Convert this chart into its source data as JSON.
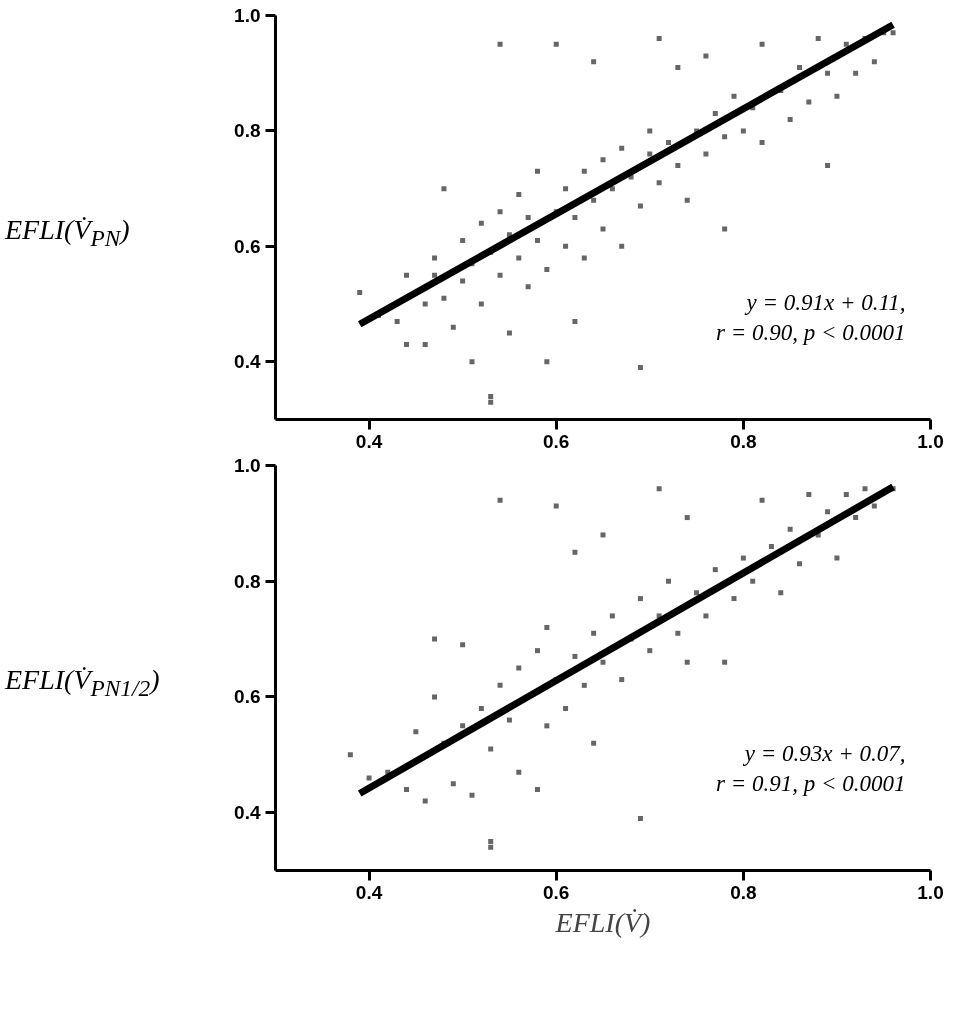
{
  "chart_data": [
    {
      "type": "scatter",
      "ylabel": "EFLI(V̇$_{PN}$)",
      "xlim": [
        0.3,
        1.0
      ],
      "ylim": [
        0.3,
        1.0
      ],
      "xticks": [
        0.4,
        0.6,
        0.8,
        {
          "value": 1.0,
          "label": "1.0"
        }
      ],
      "yticks": [
        0.4,
        0.6,
        0.8,
        {
          "value": 1.0,
          "label": "1.0"
        }
      ],
      "annotations": [
        "y = 0.91x + 0.11,",
        "r = 0.90, p < 0.0001"
      ],
      "series": [
        {
          "color": "#666666",
          "marker": "square",
          "x": [
            0.39,
            0.41,
            0.43,
            0.44,
            0.44,
            0.46,
            0.46,
            0.47,
            0.47,
            0.48,
            0.48,
            0.49,
            0.5,
            0.5,
            0.51,
            0.51,
            0.52,
            0.52,
            0.53,
            0.53,
            0.53,
            0.54,
            0.54,
            0.54,
            0.55,
            0.55,
            0.56,
            0.56,
            0.57,
            0.57,
            0.58,
            0.58,
            0.59,
            0.59,
            0.6,
            0.6,
            0.61,
            0.61,
            0.62,
            0.62,
            0.63,
            0.63,
            0.64,
            0.64,
            0.65,
            0.65,
            0.66,
            0.67,
            0.67,
            0.68,
            0.69,
            0.69,
            0.7,
            0.7,
            0.71,
            0.71,
            0.72,
            0.73,
            0.73,
            0.74,
            0.75,
            0.76,
            0.76,
            0.77,
            0.78,
            0.78,
            0.79,
            0.8,
            0.81,
            0.82,
            0.82,
            0.84,
            0.85,
            0.86,
            0.87,
            0.88,
            0.89,
            0.89,
            0.9,
            0.91,
            0.92,
            0.93,
            0.94,
            0.95,
            0.96
          ],
          "values": [
            0.52,
            0.48,
            0.47,
            0.43,
            0.55,
            0.43,
            0.5,
            0.55,
            0.58,
            0.51,
            0.7,
            0.46,
            0.54,
            0.61,
            0.4,
            0.57,
            0.5,
            0.64,
            0.33,
            0.34,
            0.59,
            0.55,
            0.66,
            0.95,
            0.45,
            0.62,
            0.58,
            0.69,
            0.53,
            0.65,
            0.61,
            0.73,
            0.4,
            0.56,
            0.66,
            0.95,
            0.6,
            0.7,
            0.47,
            0.65,
            0.73,
            0.58,
            0.68,
            0.92,
            0.63,
            0.75,
            0.7,
            0.6,
            0.77,
            0.72,
            0.39,
            0.67,
            0.76,
            0.8,
            0.96,
            0.71,
            0.78,
            0.74,
            0.91,
            0.68,
            0.8,
            0.76,
            0.93,
            0.83,
            0.63,
            0.79,
            0.86,
            0.8,
            0.84,
            0.95,
            0.78,
            0.87,
            0.82,
            0.91,
            0.85,
            0.96,
            0.9,
            0.74,
            0.86,
            0.95,
            0.9,
            0.96,
            0.92,
            0.97,
            0.97
          ]
        },
        {
          "type": "line",
          "color": "#000000",
          "line_style": "solid",
          "x": [
            0.39,
            0.96
          ],
          "values": [
            0.465,
            0.984
          ]
        }
      ]
    },
    {
      "type": "scatter",
      "ylabel": "EFLI(V̇$_{PN1/2}$)",
      "xlabel": "EFLI(V̇)",
      "xlim": [
        0.3,
        1.0
      ],
      "ylim": [
        0.3,
        1.0
      ],
      "xticks": [
        0.4,
        0.6,
        0.8,
        {
          "value": 1.0,
          "label": "1.0"
        }
      ],
      "yticks": [
        0.4,
        0.6,
        0.8,
        {
          "value": 1.0,
          "label": "1.0"
        }
      ],
      "annotations": [
        "y = 0.93x + 0.07,",
        "r = 0.91, p < 0.0001"
      ],
      "series": [
        {
          "color": "#666666",
          "marker": "square",
          "x": [
            0.38,
            0.4,
            0.42,
            0.44,
            0.45,
            0.46,
            0.47,
            0.47,
            0.48,
            0.49,
            0.5,
            0.5,
            0.51,
            0.52,
            0.53,
            0.53,
            0.53,
            0.54,
            0.54,
            0.55,
            0.56,
            0.56,
            0.58,
            0.58,
            0.59,
            0.59,
            0.6,
            0.6,
            0.61,
            0.62,
            0.62,
            0.63,
            0.64,
            0.64,
            0.65,
            0.65,
            0.66,
            0.67,
            0.68,
            0.69,
            0.69,
            0.7,
            0.71,
            0.71,
            0.72,
            0.73,
            0.74,
            0.74,
            0.75,
            0.76,
            0.77,
            0.78,
            0.79,
            0.8,
            0.81,
            0.82,
            0.83,
            0.84,
            0.85,
            0.86,
            0.87,
            0.88,
            0.89,
            0.9,
            0.91,
            0.92,
            0.93,
            0.94,
            0.96
          ],
          "values": [
            0.5,
            0.46,
            0.47,
            0.44,
            0.54,
            0.42,
            0.6,
            0.7,
            0.52,
            0.45,
            0.55,
            0.69,
            0.43,
            0.58,
            0.34,
            0.35,
            0.51,
            0.62,
            0.94,
            0.56,
            0.47,
            0.65,
            0.44,
            0.68,
            0.55,
            0.72,
            0.63,
            0.93,
            0.58,
            0.67,
            0.85,
            0.62,
            0.71,
            0.52,
            0.66,
            0.88,
            0.74,
            0.63,
            0.7,
            0.39,
            0.77,
            0.68,
            0.96,
            0.74,
            0.8,
            0.71,
            0.91,
            0.66,
            0.78,
            0.74,
            0.82,
            0.66,
            0.77,
            0.84,
            0.8,
            0.94,
            0.86,
            0.78,
            0.89,
            0.83,
            0.95,
            0.88,
            0.92,
            0.84,
            0.95,
            0.91,
            0.96,
            0.93,
            0.96
          ]
        },
        {
          "type": "line",
          "color": "#000000",
          "line_style": "solid",
          "x": [
            0.39,
            0.96
          ],
          "values": [
            0.433,
            0.963
          ]
        }
      ]
    }
  ]
}
